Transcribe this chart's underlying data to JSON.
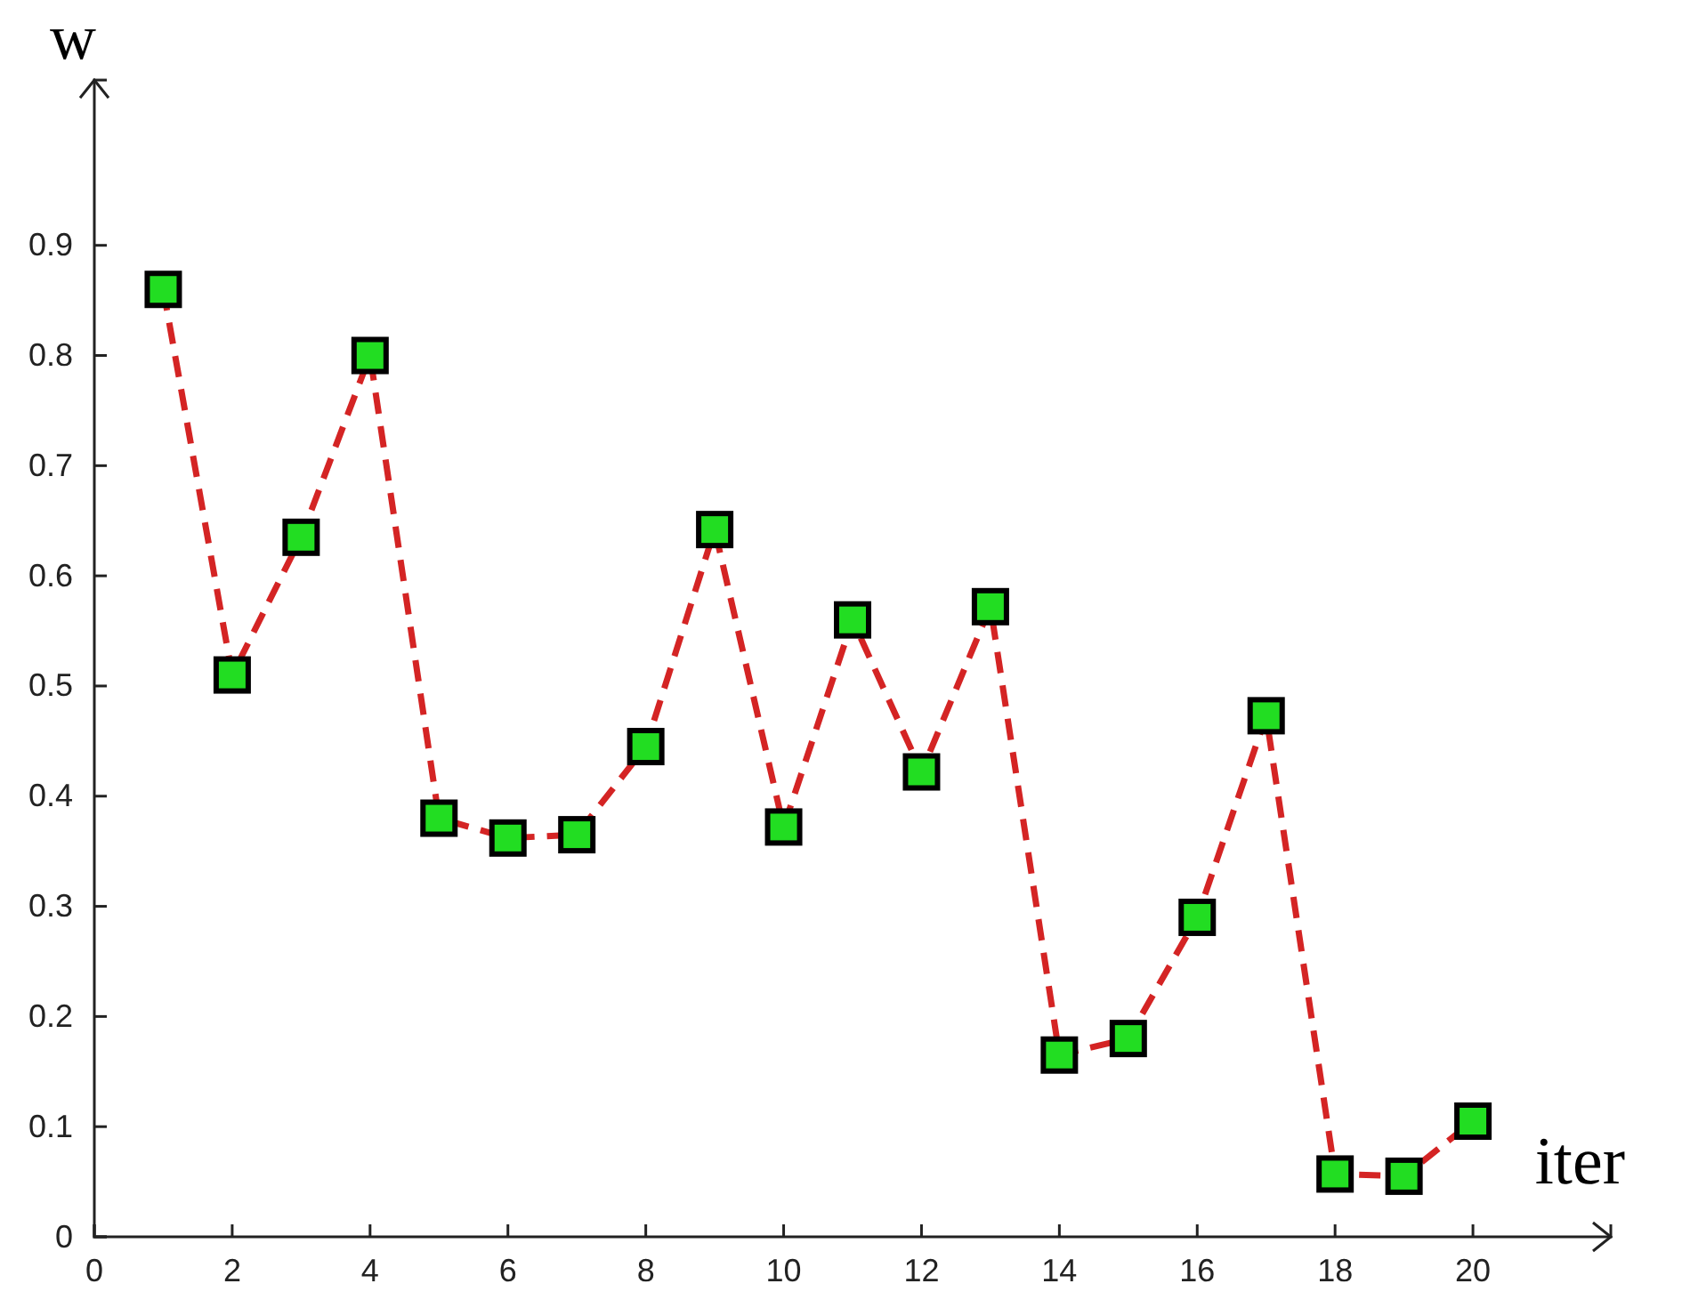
{
  "chart_data": {
    "type": "line",
    "xlabel": "iter",
    "ylabel": "w",
    "x": [
      1,
      2,
      3,
      4,
      5,
      6,
      7,
      8,
      9,
      10,
      11,
      12,
      13,
      14,
      15,
      16,
      17,
      18,
      19,
      20
    ],
    "series": [
      {
        "color": "#d42424",
        "values": [
          0.86,
          0.51,
          0.635,
          0.8,
          0.38,
          0.362,
          0.365,
          0.445,
          0.642,
          0.372,
          0.56,
          0.422,
          0.572,
          0.165,
          0.18,
          0.29,
          0.473,
          0.057,
          0.055,
          0.105
        ]
      }
    ],
    "xlim": [
      0,
      22
    ],
    "ylim": [
      0,
      1.05
    ],
    "xticks": [
      0,
      2,
      4,
      6,
      8,
      10,
      12,
      14,
      16,
      18,
      20
    ],
    "yticks": [
      0,
      0.1,
      0.2,
      0.3,
      0.4,
      0.5,
      0.6,
      0.7,
      0.8,
      0.9
    ],
    "marker": "square",
    "line_style": "dashed",
    "grid": false
  }
}
